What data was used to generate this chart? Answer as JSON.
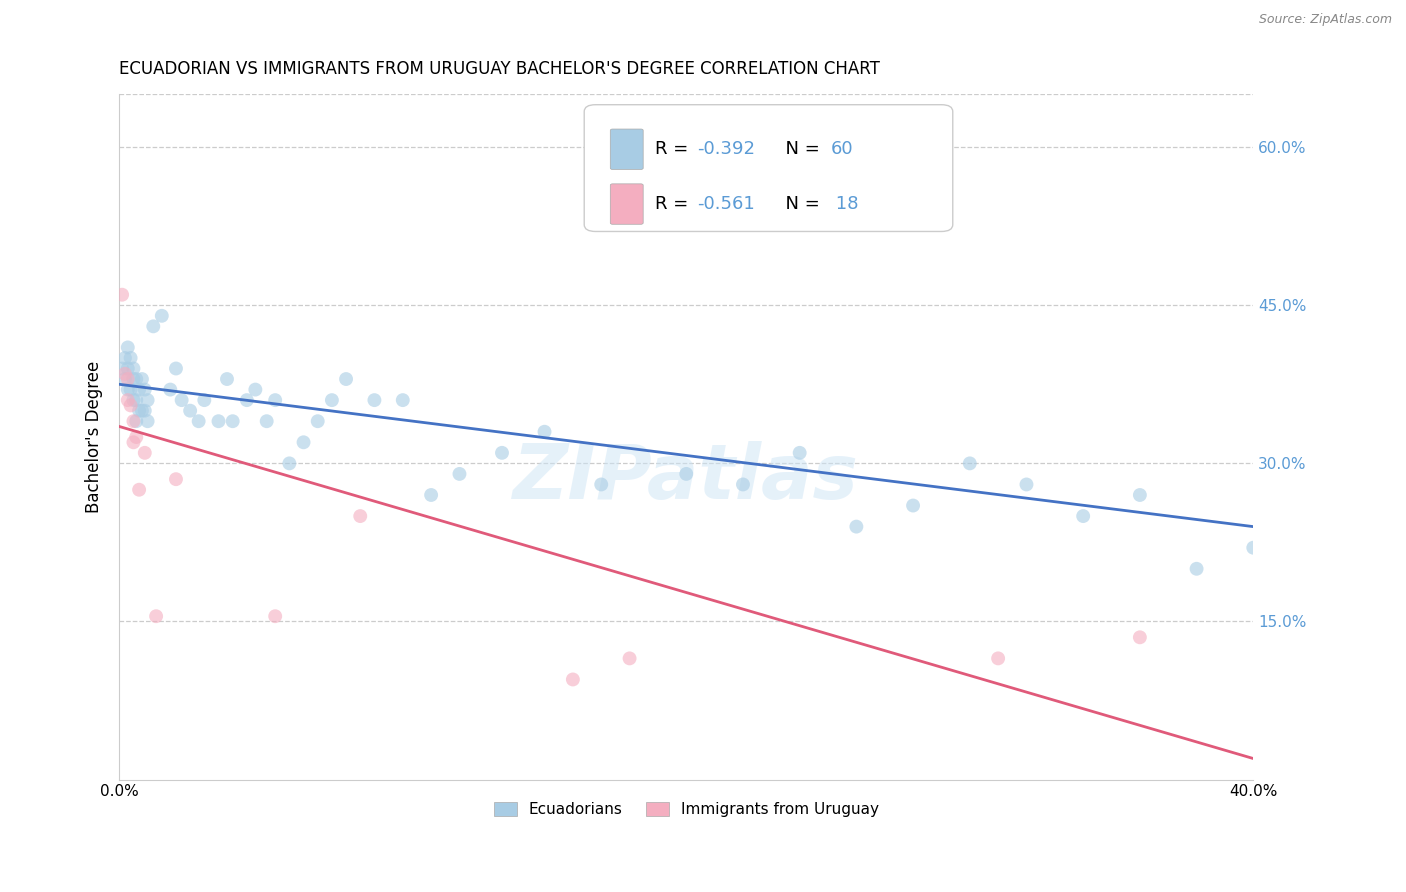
{
  "title": "ECUADORIAN VS IMMIGRANTS FROM URUGUAY BACHELOR'S DEGREE CORRELATION CHART",
  "source": "Source: ZipAtlas.com",
  "ylabel": "Bachelor's Degree",
  "xlim": [
    0.0,
    0.4
  ],
  "ylim": [
    0.0,
    0.65
  ],
  "yticks": [
    0.15,
    0.3,
    0.45,
    0.6
  ],
  "right_ytick_labels": [
    "15.0%",
    "30.0%",
    "45.0%",
    "60.0%"
  ],
  "legend_r1_prefix": "R = ",
  "legend_r1_value": "-0.392",
  "legend_n1_prefix": "  N = ",
  "legend_n1_value": "60",
  "legend_r2_prefix": "R = ",
  "legend_r2_value": "-0.561",
  "legend_n2_prefix": "  N = ",
  "legend_n2_value": " 18",
  "blue_color": "#a8cce4",
  "pink_color": "#f4aec0",
  "blue_line_color": "#4472c4",
  "pink_line_color": "#e05a7a",
  "right_axis_color": "#5b9bd5",
  "watermark": "ZIPatlas",
  "blue_scatter_x": [
    0.001,
    0.002,
    0.002,
    0.003,
    0.003,
    0.003,
    0.004,
    0.004,
    0.005,
    0.005,
    0.005,
    0.006,
    0.006,
    0.006,
    0.007,
    0.007,
    0.008,
    0.008,
    0.009,
    0.009,
    0.01,
    0.01,
    0.012,
    0.015,
    0.018,
    0.02,
    0.022,
    0.025,
    0.028,
    0.03,
    0.035,
    0.038,
    0.04,
    0.045,
    0.048,
    0.052,
    0.055,
    0.06,
    0.065,
    0.07,
    0.075,
    0.08,
    0.09,
    0.1,
    0.11,
    0.12,
    0.135,
    0.15,
    0.17,
    0.2,
    0.22,
    0.24,
    0.26,
    0.28,
    0.3,
    0.32,
    0.34,
    0.36,
    0.38,
    0.4
  ],
  "blue_scatter_y": [
    0.39,
    0.4,
    0.38,
    0.41,
    0.39,
    0.37,
    0.4,
    0.37,
    0.39,
    0.38,
    0.36,
    0.38,
    0.36,
    0.34,
    0.37,
    0.35,
    0.38,
    0.35,
    0.37,
    0.35,
    0.36,
    0.34,
    0.43,
    0.44,
    0.37,
    0.39,
    0.36,
    0.35,
    0.34,
    0.36,
    0.34,
    0.38,
    0.34,
    0.36,
    0.37,
    0.34,
    0.36,
    0.3,
    0.32,
    0.34,
    0.36,
    0.38,
    0.36,
    0.36,
    0.27,
    0.29,
    0.31,
    0.33,
    0.28,
    0.29,
    0.28,
    0.31,
    0.24,
    0.26,
    0.3,
    0.28,
    0.25,
    0.27,
    0.2,
    0.22
  ],
  "pink_scatter_x": [
    0.001,
    0.002,
    0.003,
    0.003,
    0.004,
    0.005,
    0.005,
    0.006,
    0.007,
    0.009,
    0.013,
    0.02,
    0.055,
    0.085,
    0.16,
    0.18,
    0.31,
    0.36
  ],
  "pink_scatter_y": [
    0.46,
    0.385,
    0.38,
    0.36,
    0.355,
    0.34,
    0.32,
    0.325,
    0.275,
    0.31,
    0.155,
    0.285,
    0.155,
    0.25,
    0.095,
    0.115,
    0.115,
    0.135
  ],
  "blue_line_x0": 0.0,
  "blue_line_x1": 0.4,
  "blue_line_y0": 0.375,
  "blue_line_y1": 0.24,
  "pink_line_x0": 0.0,
  "pink_line_x1": 0.4,
  "pink_line_y0": 0.335,
  "pink_line_y1": 0.02,
  "scatter_size": 100,
  "scatter_alpha": 0.6,
  "title_fontsize": 12,
  "label_fontsize": 12,
  "tick_fontsize": 11,
  "legend_fontsize": 13
}
